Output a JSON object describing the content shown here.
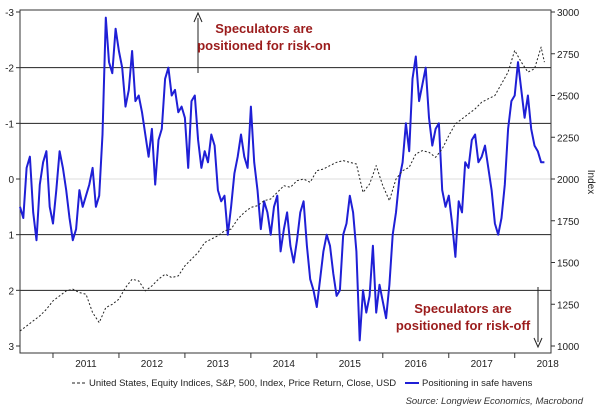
{
  "chart_data": {
    "type": "line",
    "title": "",
    "x_ticks": [
      "2011",
      "2012",
      "2013",
      "2014",
      "2015",
      "2016",
      "2017",
      "2018"
    ],
    "y_left": {
      "label": "",
      "ticks": [
        "-3",
        "-2",
        "-1",
        "0",
        "1",
        "2",
        "3"
      ],
      "range": [
        -3,
        3
      ],
      "inverted": true
    },
    "y_right": {
      "label": "Index",
      "ticks": [
        "3000",
        "2750",
        "2500",
        "2250",
        "2000",
        "1750",
        "1500",
        "1250",
        "1000"
      ],
      "range": [
        1000,
        3000
      ]
    },
    "annotations": {
      "top": [
        "Speculators are",
        "positioned for risk-on"
      ],
      "bottom": [
        "Speculators are",
        "positioned for risk-off"
      ]
    },
    "legend": {
      "sp500": "United States, Equity Indices, S&P, 500, Index, Price Return, Close, USD",
      "positioning": "Positioning in safe havens"
    },
    "source": "Source: Longview Economics, Macrobond",
    "colors": {
      "positioning": "#1f1fd6",
      "sp500": "#222222",
      "annotation": "#9b1c1c"
    },
    "series": [
      {
        "name": "Positioning in safe havens",
        "axis": "left",
        "x": [
          2010.5,
          2010.55,
          2010.6,
          2010.65,
          2010.7,
          2010.75,
          2010.8,
          2010.85,
          2010.9,
          2010.95,
          2011.0,
          2011.05,
          2011.1,
          2011.15,
          2011.2,
          2011.25,
          2011.3,
          2011.35,
          2011.4,
          2011.45,
          2011.5,
          2011.55,
          2011.6,
          2011.65,
          2011.7,
          2011.75,
          2011.8,
          2011.85,
          2011.9,
          2011.95,
          2012.0,
          2012.05,
          2012.1,
          2012.15,
          2012.2,
          2012.25,
          2012.3,
          2012.35,
          2012.4,
          2012.45,
          2012.5,
          2012.55,
          2012.6,
          2012.65,
          2012.7,
          2012.75,
          2012.8,
          2012.85,
          2012.9,
          2012.95,
          2013.0,
          2013.05,
          2013.1,
          2013.15,
          2013.2,
          2013.25,
          2013.3,
          2013.35,
          2013.4,
          2013.45,
          2013.5,
          2013.55,
          2013.6,
          2013.65,
          2013.7,
          2013.75,
          2013.8,
          2013.85,
          2013.9,
          2013.95,
          2014.0,
          2014.05,
          2014.1,
          2014.15,
          2014.2,
          2014.25,
          2014.3,
          2014.35,
          2014.4,
          2014.45,
          2014.5,
          2014.55,
          2014.6,
          2014.65,
          2014.7,
          2014.75,
          2014.8,
          2014.85,
          2014.9,
          2014.95,
          2015.0,
          2015.05,
          2015.1,
          2015.15,
          2015.2,
          2015.25,
          2015.3,
          2015.35,
          2015.4,
          2015.45,
          2015.5,
          2015.55,
          2015.6,
          2015.65,
          2015.7,
          2015.75,
          2015.8,
          2015.85,
          2015.9,
          2015.95,
          2016.0,
          2016.05,
          2016.1,
          2016.15,
          2016.2,
          2016.25,
          2016.3,
          2016.35,
          2016.4,
          2016.45,
          2016.5,
          2016.55,
          2016.6,
          2016.65,
          2016.7,
          2016.75,
          2016.8,
          2016.85,
          2016.9,
          2016.95,
          2017.0,
          2017.05,
          2017.1,
          2017.15,
          2017.2,
          2017.25,
          2017.3,
          2017.35,
          2017.4,
          2017.45,
          2017.5,
          2017.55,
          2017.6,
          2017.65,
          2017.7,
          2017.75,
          2017.8,
          2017.85,
          2017.9,
          2017.95,
          2018.0,
          2018.05,
          2018.1,
          2018.15,
          2018.2,
          2018.25,
          2018.3,
          2018.35,
          2018.4,
          2018.45
        ],
        "values": [
          0.5,
          0.7,
          -0.2,
          -0.4,
          0.6,
          1.1,
          0.1,
          -0.3,
          -0.5,
          0.5,
          0.8,
          0.2,
          -0.5,
          -0.2,
          0.2,
          0.7,
          1.1,
          0.9,
          0.2,
          0.5,
          0.3,
          0.1,
          -0.2,
          0.5,
          0.3,
          -0.8,
          -2.9,
          -2.1,
          -1.9,
          -2.7,
          -2.3,
          -2.0,
          -1.3,
          -1.6,
          -2.3,
          -1.4,
          -1.5,
          -1.2,
          -0.8,
          -0.4,
          -0.9,
          0.1,
          -0.7,
          -0.9,
          -1.8,
          -2.0,
          -1.5,
          -1.6,
          -1.2,
          -1.3,
          -1.1,
          -0.2,
          -1.4,
          -1.5,
          -0.7,
          -0.2,
          -0.5,
          -0.3,
          -0.8,
          -0.6,
          0.2,
          0.4,
          0.3,
          1.0,
          0.5,
          -0.1,
          -0.4,
          -0.8,
          -0.4,
          -0.2,
          -1.3,
          -0.3,
          0.2,
          0.9,
          0.4,
          0.6,
          1.0,
          0.5,
          0.3,
          1.3,
          0.9,
          0.6,
          1.2,
          1.5,
          1.1,
          0.6,
          0.4,
          1.2,
          1.8,
          2.0,
          2.3,
          1.8,
          1.3,
          1.0,
          1.2,
          1.7,
          2.1,
          2.0,
          1.0,
          0.8,
          0.3,
          0.6,
          1.3,
          2.9,
          2.0,
          2.4,
          2.1,
          1.2,
          2.4,
          1.9,
          2.2,
          2.5,
          1.9,
          1.0,
          0.6,
          0.0,
          -0.3,
          -1.0,
          -0.5,
          -1.8,
          -2.2,
          -1.4,
          -1.7,
          -2.0,
          -1.1,
          -0.6,
          -0.9,
          -1.0,
          0.2,
          0.5,
          0.3,
          0.8,
          1.4,
          0.4,
          0.6,
          -0.3,
          -0.2,
          -0.7,
          -0.8,
          -0.3,
          -0.4,
          -0.6,
          -0.2,
          0.2,
          0.8,
          1.0,
          0.7,
          0.1,
          -0.9,
          -1.4,
          -1.5,
          -2.1,
          -1.6,
          -1.1,
          -1.5,
          -0.9,
          -0.6,
          -0.5,
          -0.3,
          -0.3
        ]
      },
      {
        "name": "United States, Equity Indices, S&P, 500, Index, Price Return, Close, USD",
        "axis": "right",
        "x": [
          2010.5,
          2010.6,
          2010.7,
          2010.8,
          2010.9,
          2011.0,
          2011.1,
          2011.2,
          2011.3,
          2011.4,
          2011.5,
          2011.6,
          2011.7,
          2011.8,
          2011.9,
          2012.0,
          2012.1,
          2012.2,
          2012.3,
          2012.4,
          2012.5,
          2012.6,
          2012.7,
          2012.8,
          2012.9,
          2013.0,
          2013.1,
          2013.2,
          2013.3,
          2013.4,
          2013.5,
          2013.6,
          2013.7,
          2013.8,
          2013.9,
          2014.0,
          2014.1,
          2014.2,
          2014.3,
          2014.4,
          2014.5,
          2014.6,
          2014.7,
          2014.8,
          2014.9,
          2015.0,
          2015.1,
          2015.2,
          2015.3,
          2015.4,
          2015.5,
          2015.6,
          2015.7,
          2015.8,
          2015.9,
          2016.0,
          2016.1,
          2016.2,
          2016.3,
          2016.4,
          2016.5,
          2016.6,
          2016.7,
          2016.8,
          2016.9,
          2017.0,
          2017.1,
          2017.2,
          2017.3,
          2017.4,
          2017.5,
          2017.6,
          2017.7,
          2017.8,
          2017.9,
          2018.0,
          2018.1,
          2018.2,
          2018.3,
          2018.4,
          2018.45
        ],
        "values": [
          1090,
          1120,
          1150,
          1180,
          1220,
          1270,
          1300,
          1330,
          1340,
          1320,
          1310,
          1200,
          1140,
          1230,
          1250,
          1280,
          1350,
          1400,
          1390,
          1330,
          1360,
          1400,
          1430,
          1410,
          1420,
          1480,
          1520,
          1560,
          1620,
          1640,
          1660,
          1690,
          1700,
          1760,
          1800,
          1830,
          1840,
          1870,
          1880,
          1920,
          1960,
          1950,
          1990,
          2000,
          1980,
          2050,
          2060,
          2080,
          2100,
          2110,
          2100,
          2090,
          1920,
          1970,
          2080,
          1960,
          1870,
          2000,
          2050,
          2070,
          2150,
          2170,
          2160,
          2130,
          2180,
          2260,
          2330,
          2360,
          2390,
          2420,
          2460,
          2480,
          2500,
          2570,
          2640,
          2770,
          2700,
          2640,
          2660,
          2790,
          2700
        ]
      }
    ]
  }
}
